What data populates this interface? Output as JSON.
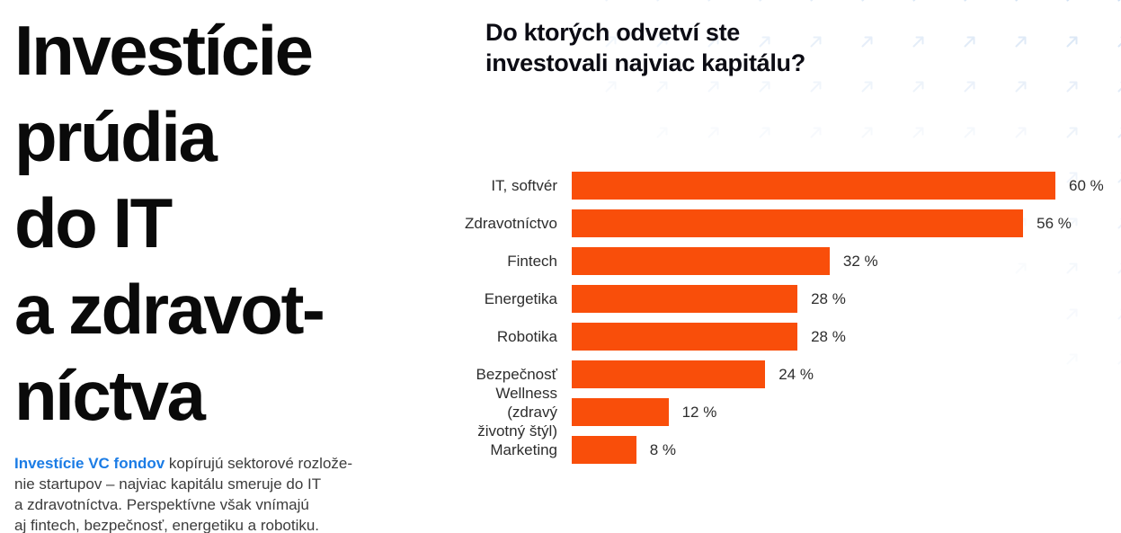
{
  "page": {
    "background_color": "#ffffff"
  },
  "left_column": {
    "headline": "Investície\nprúdia\ndo IT\na zdravot-\nníctva",
    "paragraph_lead": "Investície VC fondov",
    "paragraph_body": " kopírujú sektorové rozlože-\nnie startupov – najviac kapitálu smeruje do IT\na zdravotníctva. Perspektívne však vnímajú\naj fintech, bezpečnosť, energetiku a robotiku.",
    "lead_color": "#1b7ce5",
    "text_color": "#3c3c3c"
  },
  "chart_data": {
    "type": "bar",
    "orientation": "horizontal",
    "title": "Do ktorých odvetví ste\ninvestovali najviac kapitálu?",
    "categories": [
      "IT, softvér",
      "Zdravotníctvo",
      "Fintech",
      "Energetika",
      "Robotika",
      "Bezpečnosť",
      "Wellness (zdravý\nživotný štýl)",
      "Marketing"
    ],
    "values": [
      60,
      56,
      32,
      28,
      28,
      24,
      12,
      8
    ],
    "value_labels": [
      "60 %",
      "56 %",
      "32 %",
      "28 %",
      "28 %",
      "24 %",
      "12 %",
      "8 %"
    ],
    "xlim": [
      0,
      60
    ],
    "xlabel": "",
    "ylabel": "",
    "grid": false,
    "legend": false,
    "bar_color": "#f94e0a",
    "value_label_position": "right-of-bar"
  },
  "background_pattern": {
    "icon": "trend-up-arrow-icon",
    "color": "#9fc0e8"
  }
}
